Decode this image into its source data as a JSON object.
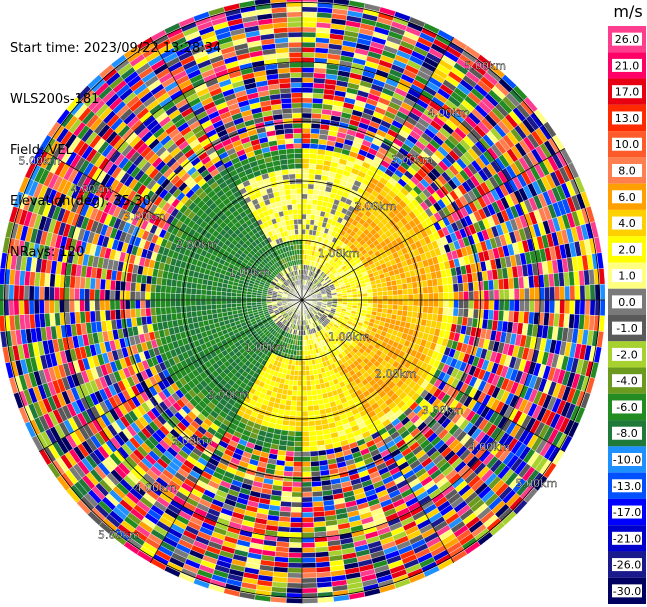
{
  "info": {
    "start_time": "Start time: 2023/09/22 13:28:34",
    "instrument": "WLS200s-181",
    "field": "Field: VEL",
    "elevation": "Elevation(deg): 35.30",
    "nrays": "NRays: 120"
  },
  "chart_data": {
    "type": "heatmap",
    "projection": "polar PPI",
    "field": "VEL",
    "units": "m/s",
    "nrays": 120,
    "elevation_deg": 35.3,
    "range_rings_km": [
      1,
      2,
      3,
      4,
      5
    ],
    "range_labels": [
      "1.00km",
      "2.00km",
      "3.00km",
      "4.00km",
      "5.00km"
    ],
    "max_range_km": 5.1,
    "spoke_angles_deg": [
      0,
      30,
      60,
      90,
      120,
      150,
      180,
      210,
      240,
      270,
      300,
      330
    ],
    "colorbar": {
      "label": "m/s",
      "tick_labels": [
        "26.0",
        "21.0",
        "17.0",
        "13.0",
        "10.0",
        "8.0",
        "6.0",
        "4.0",
        "2.0",
        "1.0",
        "0.0",
        "-1.0",
        "-2.0",
        "-4.0",
        "-6.0",
        "-8.0",
        "-10.0",
        "-13.0",
        "-17.0",
        "-21.0",
        "-26.0",
        "-30.0"
      ],
      "colors": [
        "#ff3d8e",
        "#ff0066",
        "#e60012",
        "#ff2a00",
        "#ff5a2a",
        "#ff7f50",
        "#ffa000",
        "#ffd000",
        "#ffff00",
        "#ffff80",
        "#7a7a7a",
        "#5a5a5a",
        "#a6d12e",
        "#6b9a1e",
        "#228b22",
        "#1f7a3a",
        "#1e90ff",
        "#0050ff",
        "#0000ff",
        "#0000cd",
        "#1a1a8c",
        "#000060"
      ]
    },
    "velocity_structure": [
      {
        "sector_deg": [
          330,
          30
        ],
        "range_km": [
          1.0,
          2.2
        ],
        "mean_ms": 2.0
      },
      {
        "sector_deg": [
          30,
          150
        ],
        "range_km": [
          1.2,
          2.4
        ],
        "mean_ms": 6.0
      },
      {
        "sector_deg": [
          150,
          210
        ],
        "range_km": [
          1.0,
          2.2
        ],
        "mean_ms": 4.0
      },
      {
        "sector_deg": [
          210,
          330
        ],
        "range_km": [
          0.6,
          2.3
        ],
        "mean_ms": -6.0
      },
      {
        "sector_deg": [
          0,
          360
        ],
        "range_km": [
          0.0,
          0.6
        ],
        "mean_ms": 0.0
      }
    ],
    "noise_beyond_km": 2.55
  }
}
